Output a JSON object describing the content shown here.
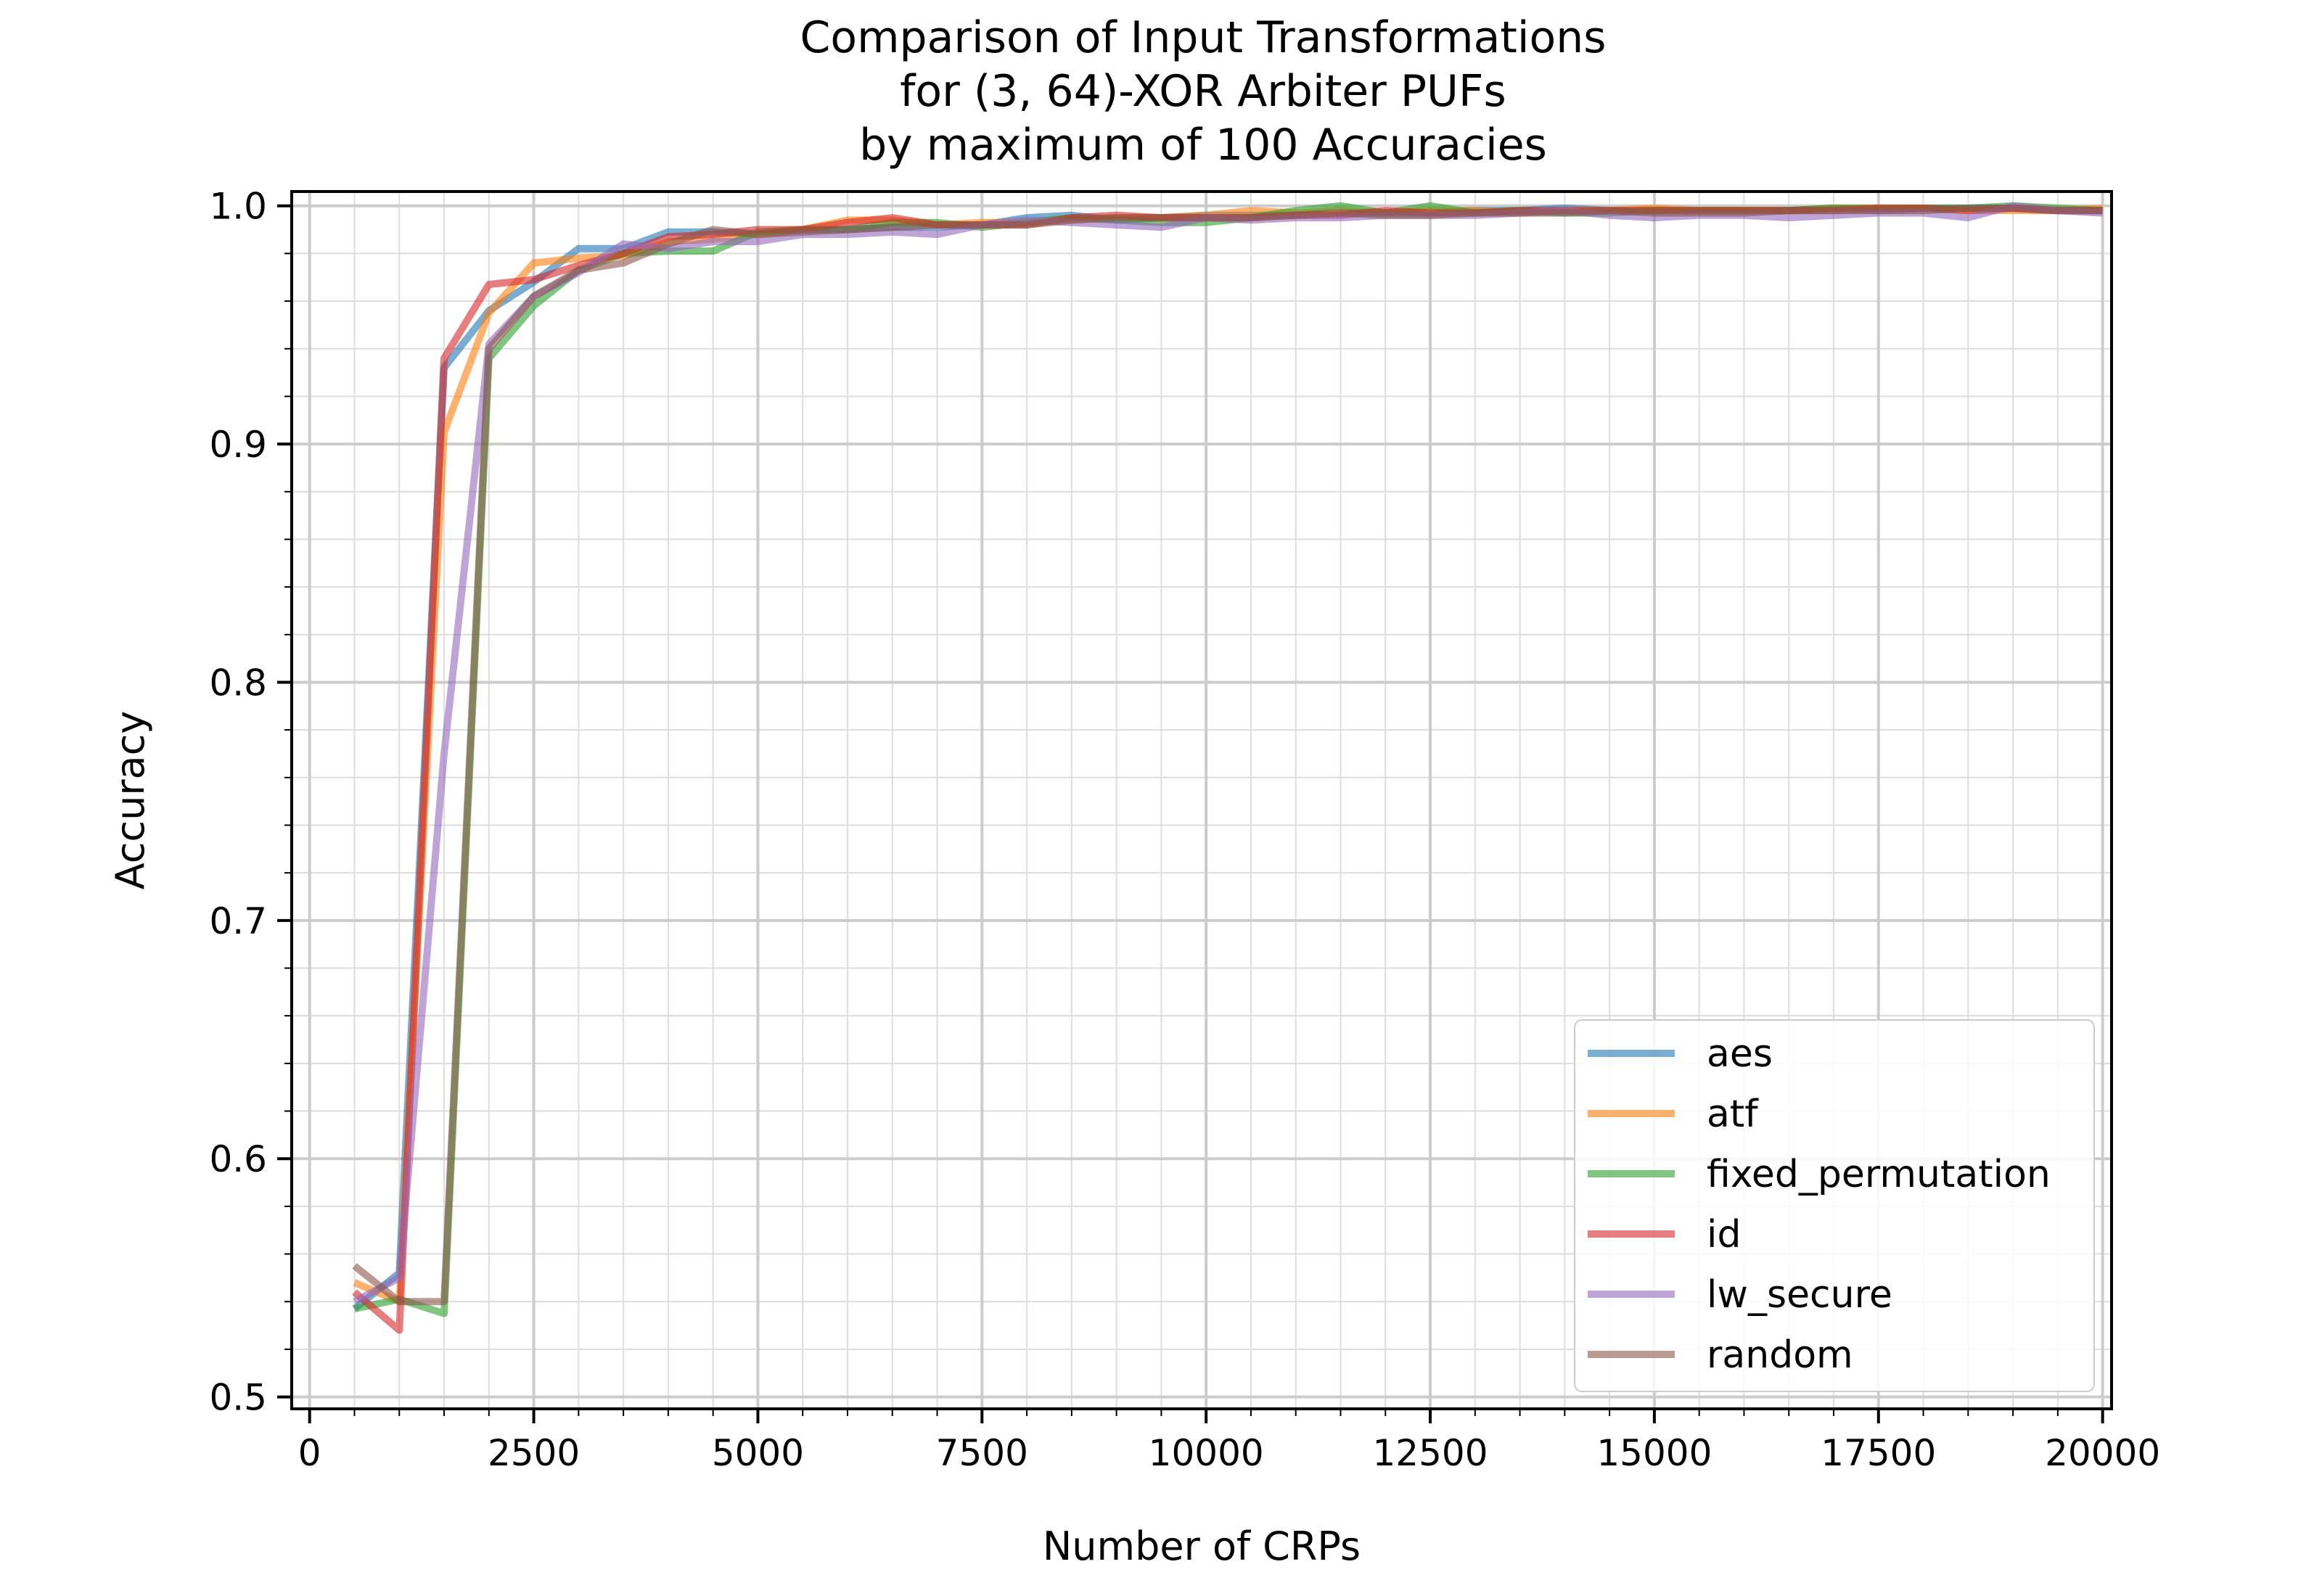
{
  "chart_data": {
    "type": "line",
    "title": [
      "Comparison of Input Transformations",
      "for (3, 64)-XOR Arbiter PUFs",
      "by maximum of 100 Accuracies"
    ],
    "xlabel": "Number of CRPs",
    "ylabel": "Accuracy",
    "xlim": [
      0,
      20000
    ],
    "ylim": [
      0.5,
      1.0
    ],
    "x_ticks": [
      0,
      2500,
      5000,
      7500,
      10000,
      12500,
      15000,
      17500,
      20000
    ],
    "x_tick_labels": [
      "0",
      "2500",
      "5000",
      "7500",
      "10000",
      "12500",
      "15000",
      "17500",
      "20000"
    ],
    "y_ticks": [
      0.5,
      0.6,
      0.7,
      0.8,
      0.9,
      1.0
    ],
    "y_tick_labels": [
      "0.5",
      "0.6",
      "0.7",
      "0.8",
      "0.9",
      "1.0"
    ],
    "grid": true,
    "legend_position": "lower-right",
    "x": [
      500,
      1000,
      1500,
      2000,
      2500,
      3000,
      3500,
      4000,
      4500,
      5000,
      5500,
      6000,
      6500,
      7000,
      7500,
      8000,
      8500,
      9000,
      9500,
      10000,
      10500,
      11000,
      11500,
      12000,
      12500,
      13000,
      13500,
      14000,
      14500,
      15000,
      15500,
      16000,
      16500,
      17000,
      17500,
      18000,
      18500,
      19000,
      19500,
      20000
    ],
    "series": [
      {
        "name": "aes",
        "color": "#1f77b4",
        "values": [
          0.537,
          0.552,
          0.932,
          0.956,
          0.968,
          0.982,
          0.982,
          0.989,
          0.989,
          0.988,
          0.99,
          0.99,
          0.991,
          0.991,
          0.992,
          0.995,
          0.996,
          0.994,
          0.995,
          0.996,
          0.996,
          0.996,
          0.997,
          0.997,
          0.997,
          0.998,
          0.998,
          0.999,
          0.998,
          0.998,
          0.998,
          0.998,
          0.998,
          0.999,
          0.998,
          0.999,
          0.999,
          0.999,
          0.998,
          0.998
        ]
      },
      {
        "name": "atf",
        "color": "#ff7f0e",
        "values": [
          0.548,
          0.54,
          0.905,
          0.955,
          0.976,
          0.978,
          0.979,
          0.985,
          0.986,
          0.988,
          0.99,
          0.994,
          0.994,
          0.992,
          0.993,
          0.993,
          0.994,
          0.995,
          0.995,
          0.996,
          0.998,
          0.997,
          0.998,
          0.997,
          0.998,
          0.998,
          0.997,
          0.998,
          0.998,
          0.999,
          0.998,
          0.998,
          0.998,
          0.999,
          0.999,
          0.999,
          0.998,
          0.998,
          0.998,
          0.999
        ]
      },
      {
        "name": "fixed_permutation",
        "color": "#2ca02c",
        "values": [
          0.537,
          0.541,
          0.535,
          0.936,
          0.958,
          0.973,
          0.98,
          0.981,
          0.981,
          0.989,
          0.99,
          0.99,
          0.993,
          0.993,
          0.991,
          0.993,
          0.995,
          0.994,
          0.993,
          0.993,
          0.995,
          0.998,
          1.0,
          0.997,
          1.0,
          0.997,
          0.998,
          0.997,
          0.997,
          0.998,
          0.998,
          0.998,
          0.998,
          0.999,
          0.999,
          0.999,
          0.999,
          1.0,
          0.999,
          0.998
        ]
      },
      {
        "name": "id",
        "color": "#d62728",
        "values": [
          0.544,
          0.528,
          0.936,
          0.967,
          0.969,
          0.975,
          0.98,
          0.987,
          0.988,
          0.99,
          0.99,
          0.993,
          0.995,
          0.992,
          0.992,
          0.992,
          0.995,
          0.996,
          0.995,
          0.995,
          0.995,
          0.996,
          0.996,
          0.998,
          0.997,
          0.997,
          0.998,
          0.998,
          0.998,
          0.998,
          0.998,
          0.998,
          0.998,
          0.998,
          0.999,
          0.999,
          0.998,
          0.999,
          0.998,
          0.998
        ]
      },
      {
        "name": "lw_secure",
        "color": "#9467bd",
        "values": [
          0.54,
          0.55,
          0.77,
          0.942,
          0.962,
          0.972,
          0.984,
          0.982,
          0.985,
          0.985,
          0.988,
          0.988,
          0.989,
          0.988,
          0.992,
          0.994,
          0.993,
          0.992,
          0.991,
          0.995,
          0.994,
          0.995,
          0.995,
          0.996,
          0.996,
          0.996,
          0.997,
          0.998,
          0.996,
          0.995,
          0.996,
          0.996,
          0.995,
          0.996,
          0.997,
          0.997,
          0.995,
          1.0,
          0.998,
          0.997
        ]
      },
      {
        "name": "random",
        "color": "#8c564b",
        "values": [
          0.555,
          0.54,
          0.54,
          0.94,
          0.962,
          0.973,
          0.976,
          0.984,
          0.99,
          0.988,
          0.989,
          0.99,
          0.991,
          0.992,
          0.992,
          0.992,
          0.994,
          0.995,
          0.995,
          0.995,
          0.995,
          0.996,
          0.997,
          0.996,
          0.996,
          0.997,
          0.997,
          0.997,
          0.998,
          0.997,
          0.997,
          0.997,
          0.998,
          0.998,
          0.998,
          0.998,
          0.999,
          0.999,
          0.998,
          0.998
        ]
      }
    ]
  }
}
